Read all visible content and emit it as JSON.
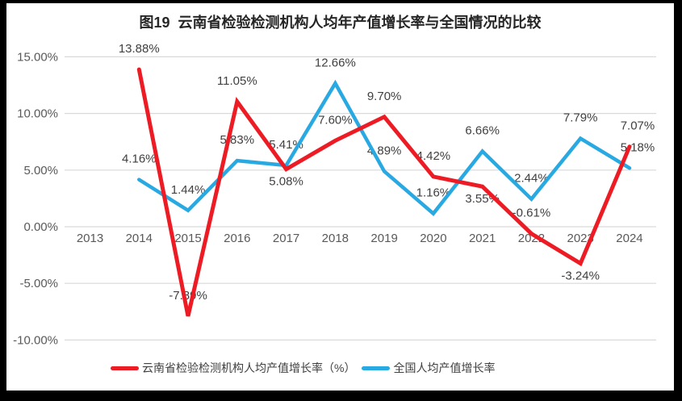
{
  "window": {
    "background": "#000000",
    "canvas_background": "#ffffff"
  },
  "title": "图19  云南省检验检测机构人均年产值增长率与全国情况的比较",
  "legend": [
    {
      "label": "云南省检验检测机构人均产值增长率（%）",
      "color": "#ED1C24"
    },
    {
      "label": "全国人均产值增长率",
      "color": "#29A9E2"
    }
  ],
  "chart_data": {
    "type": "line",
    "title": "图19  云南省检验检测机构人均年产值增长率与全国情况的比较",
    "categories": [
      "2013",
      "2014",
      "2015",
      "2016",
      "2017",
      "2018",
      "2019",
      "2020",
      "2021",
      "2022",
      "2023",
      "2024"
    ],
    "series": [
      {
        "name": "云南省检验检测机构人均产值增长率（%）",
        "color": "#ED1C24",
        "values": [
          null,
          13.88,
          -7.89,
          11.05,
          5.08,
          7.6,
          9.7,
          4.42,
          3.55,
          -0.61,
          -3.24,
          7.07
        ],
        "data_labels": [
          "",
          "13.88%",
          "-7.89%",
          "11.05%",
          "5.08%",
          "7.60%",
          "9.70%",
          "4.42%",
          "3.55%",
          "-0.61%",
          "-3.24%",
          "7.07%"
        ],
        "label_pos": [
          "",
          "above",
          "above",
          "above",
          "below",
          "above",
          "above",
          "above",
          "below",
          "above",
          "below",
          "above"
        ]
      },
      {
        "name": "全国人均产值增长率",
        "color": "#29A9E2",
        "values": [
          null,
          4.16,
          1.44,
          5.83,
          5.41,
          12.66,
          4.89,
          1.16,
          6.66,
          2.44,
          7.79,
          5.18
        ],
        "data_labels": [
          "",
          "4.16%",
          "1.44%",
          "5.83%",
          "5.41%",
          "12.66%",
          "4.89%",
          "1.16%",
          "6.66%",
          "2.44%",
          "7.79%",
          "5.18%"
        ],
        "label_pos": [
          "",
          "above",
          "above",
          "above",
          "above",
          "above",
          "above",
          "above",
          "above",
          "above",
          "above",
          "above"
        ]
      }
    ],
    "y_axis": {
      "ticks": [
        "15.00%",
        "10.00%",
        "5.00%",
        "0.00%",
        "-5.00%",
        "-10.00%"
      ],
      "tick_values": [
        15,
        10,
        5,
        0,
        -5,
        -10
      ],
      "range": [
        -10,
        15
      ]
    },
    "x_axis_ticks": [
      "2013",
      "2014",
      "2015",
      "2016",
      "2017",
      "2018",
      "2019",
      "2020",
      "2021",
      "2022",
      "2023",
      "2024"
    ],
    "grid": true,
    "legend_position": "bottom",
    "colors": {
      "gridline": "#D9D9D9",
      "axis_label": "#595959",
      "data_label": "#404040",
      "title_text": "#262626"
    }
  }
}
